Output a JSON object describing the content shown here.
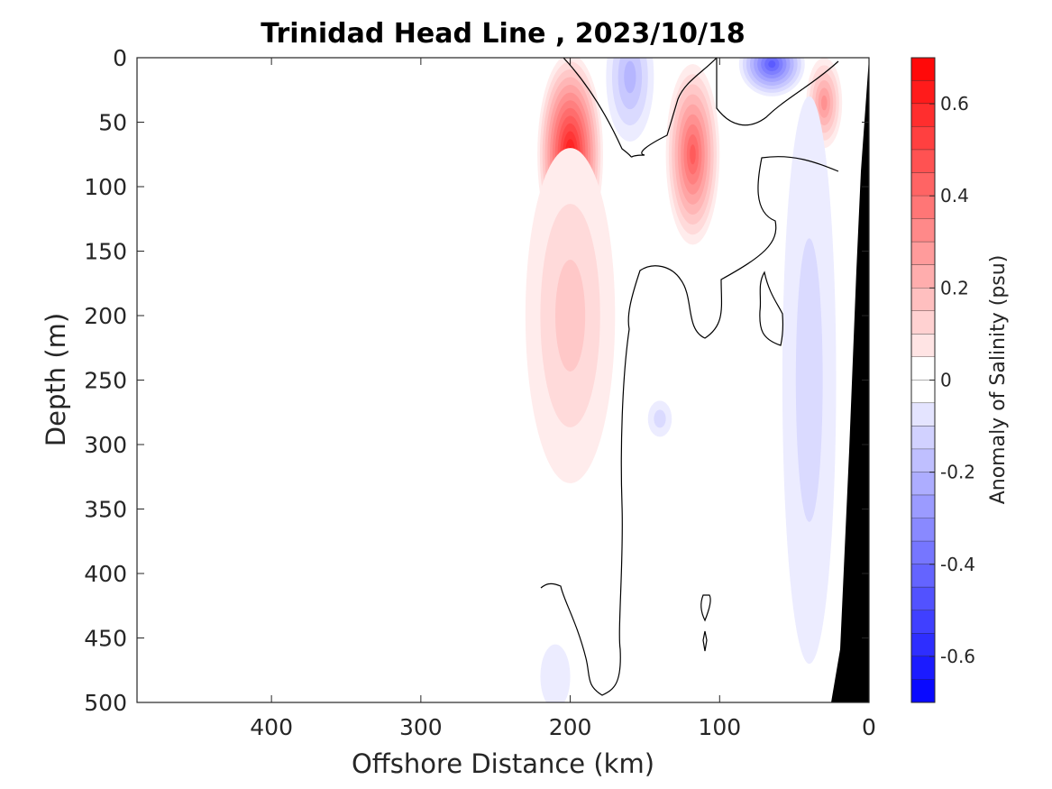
{
  "chart_data": {
    "type": "heatmap",
    "title": "Trinidad Head Line , 2023/10/18",
    "xlabel": "Offshore Distance (km)",
    "ylabel": "Depth (m)",
    "xlim": [
      490,
      0
    ],
    "ylim": [
      0,
      500
    ],
    "x_reversed": true,
    "y_reversed": true,
    "xticks": [
      400,
      300,
      200,
      100,
      0
    ],
    "yticks": [
      0,
      50,
      100,
      150,
      200,
      250,
      300,
      350,
      400,
      450,
      500
    ],
    "colorbar": {
      "label": "Anomaly of Salinity (psu)",
      "range": [
        -0.7,
        0.7
      ],
      "step": 0.05,
      "ticks": [
        0.6,
        0.4,
        0.2,
        0,
        -0.2,
        -0.4,
        -0.6
      ],
      "tick_labels": [
        "0.6",
        "0.4",
        "0.2",
        "0",
        "-0.2",
        "-0.4",
        "-0.6"
      ],
      "negative_color": "#0000ff",
      "positive_color": "#ff0000",
      "zero_color": "#ffffff"
    },
    "anomaly_features": [
      {
        "sign": "positive",
        "center_km": 200,
        "center_depth_m": 75,
        "peak_psu": 0.65
      },
      {
        "sign": "positive",
        "center_km": 118,
        "center_depth_m": 75,
        "peak_psu": 0.45
      },
      {
        "sign": "positive",
        "center_km": 30,
        "center_depth_m": 35,
        "peak_psu": 0.3
      },
      {
        "sign": "positive",
        "center_km": 200,
        "center_depth_m": 200,
        "peak_psu": 0.15
      },
      {
        "sign": "negative",
        "center_km": 65,
        "center_depth_m": 5,
        "peak_psu": -0.45
      },
      {
        "sign": "negative",
        "center_km": 160,
        "center_depth_m": 15,
        "peak_psu": -0.2
      },
      {
        "sign": "negative",
        "center_km": 40,
        "center_depth_m": 250,
        "peak_psu": -0.1
      },
      {
        "sign": "negative",
        "center_km": 140,
        "center_depth_m": 280,
        "peak_psu": -0.08
      },
      {
        "sign": "negative",
        "center_km": 210,
        "center_depth_m": 480,
        "peak_psu": -0.07
      }
    ],
    "data_extent_km": [
      0,
      220
    ],
    "bathymetry": {
      "color": "#000000",
      "coast_km": 0,
      "shelf_km_at_500m": 25
    }
  }
}
